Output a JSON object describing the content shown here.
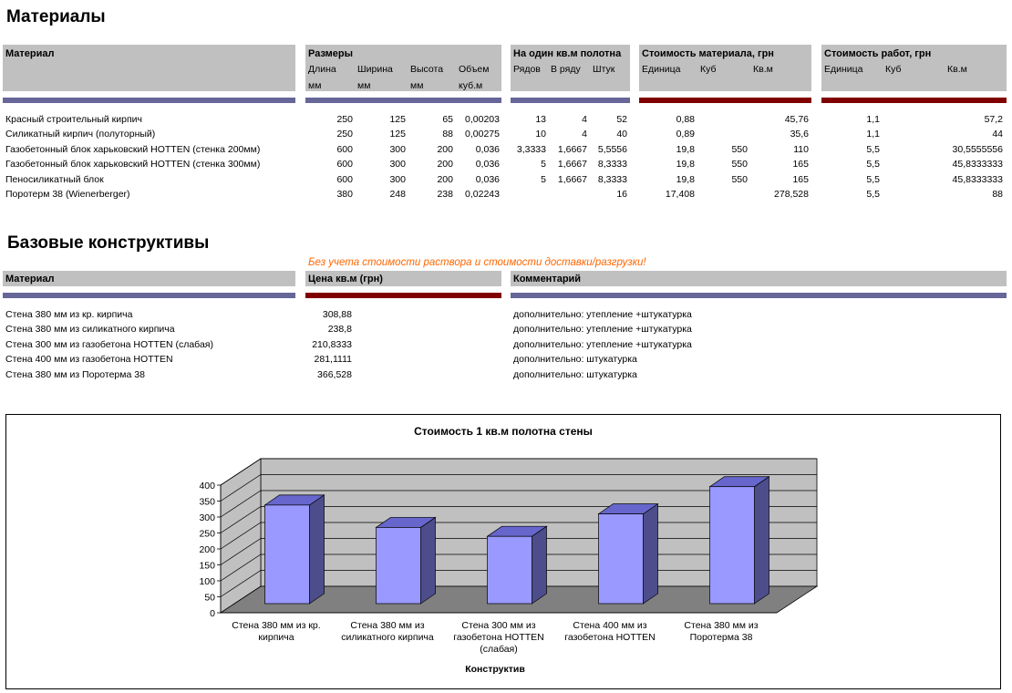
{
  "materials": {
    "title": "Материалы",
    "headers": {
      "material": "Материал",
      "sizes": "Размеры",
      "length": [
        "Длина",
        "мм"
      ],
      "width": [
        "Ширина",
        "мм"
      ],
      "height": [
        "Высота",
        "мм"
      ],
      "volume": [
        "Объем",
        "куб.м"
      ],
      "per_sqm": "На один кв.м полотна",
      "rows": "Рядов",
      "in_row": "В ряду",
      "pieces": "Штук",
      "mat_cost": "Стоимость материала, грн",
      "unit": "Единица",
      "cube": "Куб",
      "sqm": "Кв.м",
      "work_cost": "Стоимость работ, грн",
      "w_unit": "Единица",
      "w_cube": "Куб",
      "w_sqm": "Кв.м"
    },
    "rows": [
      {
        "name": "Красный строительный кирпич",
        "length": "250",
        "width": "125",
        "height": "65",
        "volume": "0,00203",
        "rows": "13",
        "in_row": "4",
        "pieces": "52",
        "unit": "0,88",
        "cube": "",
        "sqm": "45,76",
        "w_unit": "1,1",
        "w_cube": "",
        "w_sqm": "57,2"
      },
      {
        "name": "Силикатный кирпич (полуторный)",
        "length": "250",
        "width": "125",
        "height": "88",
        "volume": "0,00275",
        "rows": "10",
        "in_row": "4",
        "pieces": "40",
        "unit": "0,89",
        "cube": "",
        "sqm": "35,6",
        "w_unit": "1,1",
        "w_cube": "",
        "w_sqm": "44"
      },
      {
        "name": "Газобетонный блок харьковский HOTTEN (стенка 200мм)",
        "length": "600",
        "width": "300",
        "height": "200",
        "volume": "0,036",
        "rows": "3,3333",
        "in_row": "1,6667",
        "pieces": "5,5556",
        "unit": "19,8",
        "cube": "550",
        "sqm": "110",
        "w_unit": "5,5",
        "w_cube": "",
        "w_sqm": "30,5555556"
      },
      {
        "name": "Газобетонный блок харьковский HOTTEN (стенка 300мм)",
        "length": "600",
        "width": "300",
        "height": "200",
        "volume": "0,036",
        "rows": "5",
        "in_row": "1,6667",
        "pieces": "8,3333",
        "unit": "19,8",
        "cube": "550",
        "sqm": "165",
        "w_unit": "5,5",
        "w_cube": "",
        "w_sqm": "45,8333333"
      },
      {
        "name": "Пеносиликатный блок",
        "length": "600",
        "width": "300",
        "height": "200",
        "volume": "0,036",
        "rows": "5",
        "in_row": "1,6667",
        "pieces": "8,3333",
        "unit": "19,8",
        "cube": "550",
        "sqm": "165",
        "w_unit": "5,5",
        "w_cube": "",
        "w_sqm": "45,8333333"
      },
      {
        "name": "Поротерм 38 (Wienerberger)",
        "length": "380",
        "width": "248",
        "height": "238",
        "volume": "0,02243",
        "rows": "",
        "in_row": "",
        "pieces": "16",
        "unit": "17,408",
        "cube": "",
        "sqm": "278,528",
        "w_unit": "5,5",
        "w_cube": "",
        "w_sqm": "88"
      }
    ]
  },
  "constructs": {
    "title": "Базовые конструктивы",
    "note": "Без учета стоимости раствора и стоимости доставки/разгрузки!",
    "headers": {
      "material": "Материал",
      "price": "Цена кв.м (грн)",
      "comment": "Комментарий"
    },
    "rows": [
      {
        "name": "Стена 380 мм из кр. кирпича",
        "price": "308,88",
        "comment": "дополнительно: утепление +штукатурка"
      },
      {
        "name": "Стена 380 мм из силикатного кирпича",
        "price": "238,8",
        "comment": "дополнительно: утепление +штукатурка"
      },
      {
        "name": "Стена 300 мм из газобетона HOTTEN (слабая)",
        "price": "210,8333",
        "comment": "дополнительно: утепление +штукатурка"
      },
      {
        "name": "Стена 400 мм из газобетона HOTTEN",
        "price": "281,1111",
        "comment": "дополнительно: штукатурка"
      },
      {
        "name": "Стена 380 мм из Поротерма 38",
        "price": "366,528",
        "comment": "дополнительно: штукатурка"
      }
    ]
  },
  "chart_data": {
    "type": "bar",
    "title": "Стоимость 1 кв.м полотна стены",
    "xlabel": "Конструктив",
    "ylabel": "",
    "ylim": [
      0,
      400
    ],
    "yticks": [
      "0",
      "50",
      "100",
      "150",
      "200",
      "250",
      "300",
      "350",
      "400"
    ],
    "categories": [
      [
        "Стена 380 мм из кр.",
        "кирпича"
      ],
      [
        "Стена 380 мм из",
        "силикатного кирпича"
      ],
      [
        "Стена 300 мм из",
        "газобетона HOTTEN",
        "(слабая)"
      ],
      [
        "Стена 400 мм из",
        "газобетона HOTTEN"
      ],
      [
        "Стена 380 мм из",
        "Поротерма 38"
      ]
    ],
    "values": [
      308.88,
      238.8,
      210.8333,
      281.1111,
      366.528
    ],
    "grid": true,
    "legend": "none",
    "colors": {
      "front": "#9999ff",
      "top": "#6666cc",
      "side": "#4d4d8c",
      "wall": "#c0c0c0",
      "floor": "#808080"
    }
  }
}
